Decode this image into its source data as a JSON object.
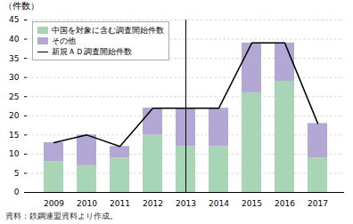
{
  "chart_data": {
    "type": "bar",
    "ylabel": "（件数）",
    "caption": "資料：鉄鋼連盟資料より作成。",
    "categories": [
      "2009",
      "2010",
      "2011",
      "2012",
      "2013",
      "2014",
      "2015",
      "2016",
      "2017"
    ],
    "series": [
      {
        "name": "中国を対象に含む調査開始件数",
        "color": "#a8d5b5",
        "values": [
          8,
          7,
          9,
          15,
          12,
          12,
          26,
          29,
          9
        ]
      },
      {
        "name": "その他",
        "color": "#b3a8d5",
        "values": [
          5,
          8,
          3,
          7,
          10,
          10,
          13,
          10,
          9
        ]
      },
      {
        "name": "新規ＡＤ調査開始件数",
        "type": "line",
        "color": "#000000",
        "values": [
          13,
          15,
          12,
          22,
          22,
          22,
          39,
          39,
          18
        ]
      }
    ],
    "stacked": true,
    "ylim": [
      0,
      45
    ],
    "yticks": [
      0,
      5,
      10,
      15,
      20,
      25,
      30,
      35,
      40,
      45
    ],
    "grid": true,
    "legend": "upper left"
  }
}
